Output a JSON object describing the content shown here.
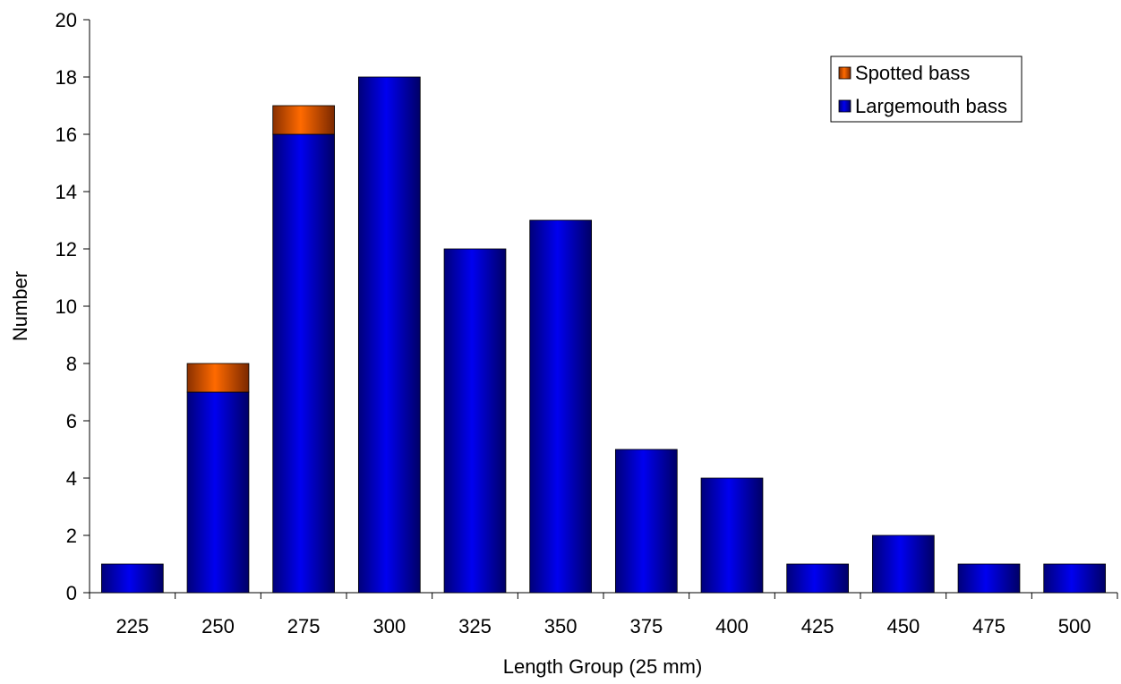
{
  "chart_data": {
    "type": "bar",
    "stacked": true,
    "title": "",
    "xlabel": "Length Group (25 mm)",
    "ylabel": "Number",
    "ylim": [
      0,
      20
    ],
    "yticks": [
      "0",
      "2",
      "4",
      "6",
      "8",
      "10",
      "12",
      "14",
      "16",
      "18",
      "20"
    ],
    "categories": [
      "225",
      "250",
      "275",
      "300",
      "325",
      "350",
      "375",
      "400",
      "425",
      "450",
      "475",
      "500"
    ],
    "series": [
      {
        "name": "Largemouth bass",
        "color": "#0000CC",
        "values": [
          1,
          7,
          16,
          18,
          12,
          13,
          5,
          4,
          1,
          2,
          1,
          1
        ]
      },
      {
        "name": "Spotted bass",
        "color": "#E65C00",
        "values": [
          0,
          1,
          1,
          0,
          0,
          0,
          0,
          0,
          0,
          0,
          0,
          0
        ]
      }
    ],
    "legend": {
      "position": "top-right",
      "order": [
        "Spotted bass",
        "Largemouth bass"
      ]
    },
    "grid": false
  }
}
